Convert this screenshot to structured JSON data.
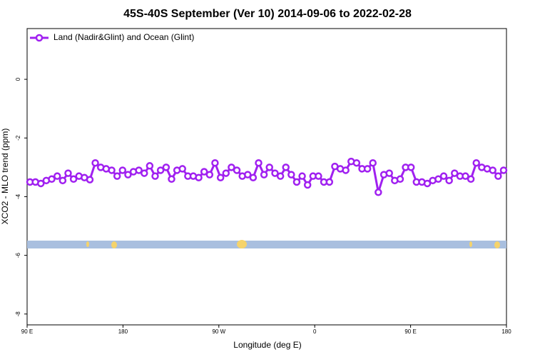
{
  "chart_data": {
    "type": "line",
    "title": "45S-40S September (Ver 10)   2014-09-06 to 2022-02-28",
    "xlabel": "Longitude (deg E)",
    "ylabel": "XCO2 - MLO trend (ppm)",
    "xlim": [
      90,
      540
    ],
    "xticks": [
      {
        "value": 90,
        "label": "90 E"
      },
      180,
      {
        "value": 270,
        "label": "90 W"
      },
      {
        "value": 360,
        "label": "0"
      },
      {
        "value": 450,
        "label": "90 E"
      },
      {
        "value": 540,
        "label": "180"
      }
    ],
    "ylim": [
      -8.37,
      1.73
    ],
    "yticks": [
      0,
      -2,
      -4,
      -6,
      -8
    ],
    "legend": "upper left",
    "x": [
      92.7,
      97.8,
      102.9,
      108.0,
      113.1,
      118.3,
      123.4,
      128.5,
      133.6,
      138.7,
      143.8,
      148.9,
      154.0,
      159.1,
      164.2,
      169.4,
      174.5,
      179.6,
      184.7,
      189.8,
      194.9,
      200.0,
      205.1,
      210.2,
      215.3,
      220.5,
      225.6,
      230.7,
      235.8,
      240.9,
      246.0,
      251.1,
      256.2,
      261.3,
      266.4,
      271.6,
      276.7,
      281.8,
      286.9,
      292.0,
      297.1,
      302.2,
      307.3,
      312.4,
      317.5,
      322.7,
      327.8,
      332.9,
      338.0,
      343.1,
      348.2,
      353.3,
      358.4,
      363.5,
      368.6,
      373.8,
      378.9,
      384.0,
      389.1,
      394.2,
      399.3,
      404.4,
      409.5,
      414.6,
      419.7,
      424.9,
      430.0,
      435.1,
      440.2,
      445.3,
      450.4,
      455.5,
      460.6,
      465.7,
      470.8,
      476.0,
      481.1,
      486.2,
      491.3,
      496.4,
      501.5,
      506.6,
      511.7,
      516.8,
      521.9,
      527.1,
      532.2,
      537.3
    ],
    "series": [
      {
        "name": "Land (Nadir&Glint) and Ocean (Glint)",
        "color": "#a020f0",
        "values": [
          -3.5,
          -3.5,
          -3.55,
          -3.45,
          -3.4,
          -3.3,
          -3.45,
          -3.2,
          -3.4,
          -3.3,
          -3.35,
          -3.42,
          -2.85,
          -3.0,
          -3.05,
          -3.1,
          -3.3,
          -3.1,
          -3.25,
          -3.15,
          -3.1,
          -3.2,
          -2.95,
          -3.3,
          -3.1,
          -3.0,
          -3.4,
          -3.1,
          -3.05,
          -3.3,
          -3.3,
          -3.35,
          -3.15,
          -3.25,
          -2.85,
          -3.35,
          -3.2,
          -3.0,
          -3.1,
          -3.3,
          -3.25,
          -3.35,
          -2.85,
          -3.25,
          -3.0,
          -3.2,
          -3.3,
          -3.0,
          -3.25,
          -3.5,
          -3.3,
          -3.6,
          -3.3,
          -3.3,
          -3.5,
          -3.5,
          -2.97,
          -3.05,
          -3.1,
          -2.8,
          -2.85,
          -3.05,
          -3.05,
          -2.85,
          -3.85,
          -3.25,
          -3.2,
          -3.45,
          -3.4,
          -3.0,
          -3.0,
          -3.5,
          -3.5,
          -3.55,
          -3.45,
          -3.4,
          -3.3,
          -3.45,
          -3.2,
          -3.3,
          -3.3,
          -3.4,
          -2.85,
          -3.0,
          -3.05,
          -3.1,
          -3.3,
          -3.1
        ]
      }
    ]
  }
}
